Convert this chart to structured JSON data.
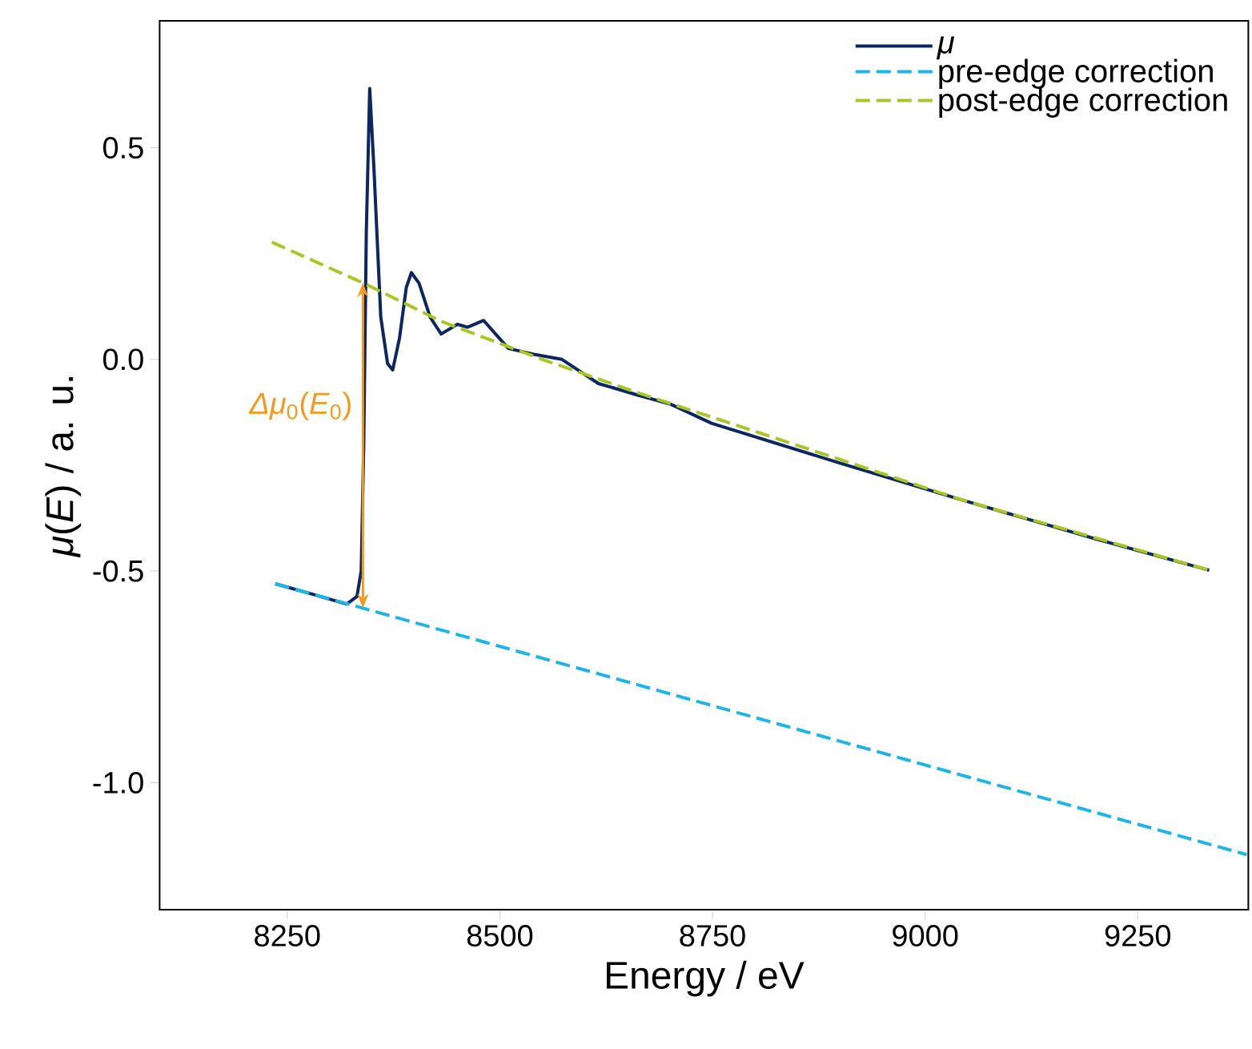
{
  "chart_data": {
    "type": "line",
    "xlabel": "Energy / eV",
    "ylabel": "*μ*(*E*) / a. u.",
    "xlim": [
      8100,
      9380
    ],
    "xticks": [
      8250,
      8500,
      8750,
      9000,
      9250
    ],
    "ylim": [
      -1.3,
      0.8
    ],
    "yticks": [
      {
        "value": 0.5,
        "label": "0.5"
      },
      {
        "value": 0.0,
        "label": "0.0"
      },
      {
        "value": -0.5,
        "label": "-0.5"
      },
      {
        "value": -1.0,
        "label": "-1.0"
      }
    ],
    "legend": "top right",
    "marker": "none",
    "series": [
      {
        "name": "*μ*",
        "color": "#0b2660",
        "line_style": "solid",
        "x": [
          8236,
          8280,
          8320,
          8332,
          8337,
          8340,
          8343,
          8347,
          8352,
          8360,
          8368,
          8374,
          8382,
          8390,
          8396,
          8405,
          8418,
          8431,
          8450,
          8462,
          8481,
          8495,
          8510,
          8540,
          8573,
          8616,
          8660,
          8701,
          8749,
          8900,
          9045,
          9200,
          9334
        ],
        "values": [
          -0.53,
          -0.555,
          -0.578,
          -0.56,
          -0.5,
          -0.2,
          0.3,
          0.64,
          0.45,
          0.1,
          -0.01,
          -0.025,
          0.05,
          0.17,
          0.205,
          0.18,
          0.1,
          0.06,
          0.083,
          0.076,
          0.092,
          0.06,
          0.026,
          0.012,
          0.0,
          -0.057,
          -0.083,
          -0.106,
          -0.151,
          -0.245,
          -0.333,
          -0.424,
          -0.498
        ]
      },
      {
        "name": "pre-edge correction",
        "color": "#1fb4e6",
        "line_style": "dashed",
        "x": [
          8236,
          9378
        ],
        "values": [
          -0.53,
          -1.17
        ]
      },
      {
        "name": "post-edge correction",
        "color": "#a8c625",
        "line_style": "dashed",
        "x": [
          8232,
          8340,
          8431,
          8550,
          8667,
          8800,
          9045,
          9334
        ],
        "values": [
          0.277,
          0.18,
          0.09,
          0.0,
          -0.082,
          -0.17,
          -0.333,
          -0.498
        ]
      }
    ],
    "annotations": [
      {
        "text": "*Δμ*$_{0}$(*E*$_{0}$)",
        "x": 8339,
        "y": -0.11
      }
    ]
  }
}
